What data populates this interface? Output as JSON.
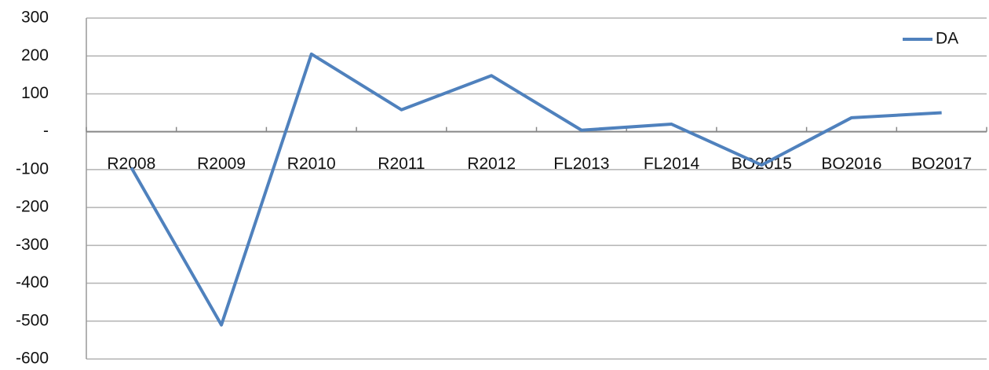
{
  "chart_data": {
    "type": "line",
    "categories": [
      "R2008",
      "R2009",
      "R2010",
      "R2011",
      "R2012",
      "FL2013",
      "FL2014",
      "BO2015",
      "BO2016",
      "BO2017"
    ],
    "series": [
      {
        "name": "DA",
        "color": "#4f81bd",
        "values": [
          -95,
          -510,
          205,
          58,
          148,
          4,
          20,
          -88,
          37,
          50
        ]
      }
    ],
    "ylim": [
      -600,
      300
    ],
    "yticks": [
      -600,
      -500,
      -400,
      -300,
      -200,
      -100,
      {
        "value": 0,
        "label": "-"
      },
      100,
      200,
      300
    ],
    "grid": true,
    "legend": "upper right"
  }
}
